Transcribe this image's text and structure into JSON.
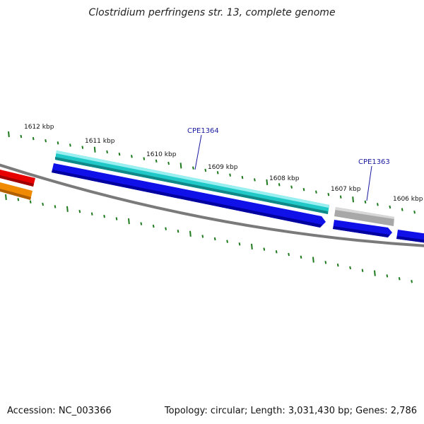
{
  "title": "Clostridium perfringens str. 13, complete genome",
  "accession": "Accession: NC_003366",
  "summary": "Topology: circular; Length: 3,031,430 bp; Genes: 2,786",
  "colors": {
    "backbone": "#7a7a7a",
    "tick": "#1f7a1f",
    "cyan_feature": "#20c8c8",
    "blue_feature": "#1010e8",
    "gray_feature": "#a8a8a8",
    "red_feature": "#e80000",
    "orange_feature": "#f08a00",
    "gene_label": "#1a1aa0"
  },
  "tick_labels": [
    "1612 kbp",
    "1611 kbp",
    "1610 kbp",
    "1609 kbp",
    "1608 kbp",
    "1607 kbp",
    "1606 kbp"
  ],
  "gene_labels": [
    "CPE1364",
    "CPE1363"
  ]
}
